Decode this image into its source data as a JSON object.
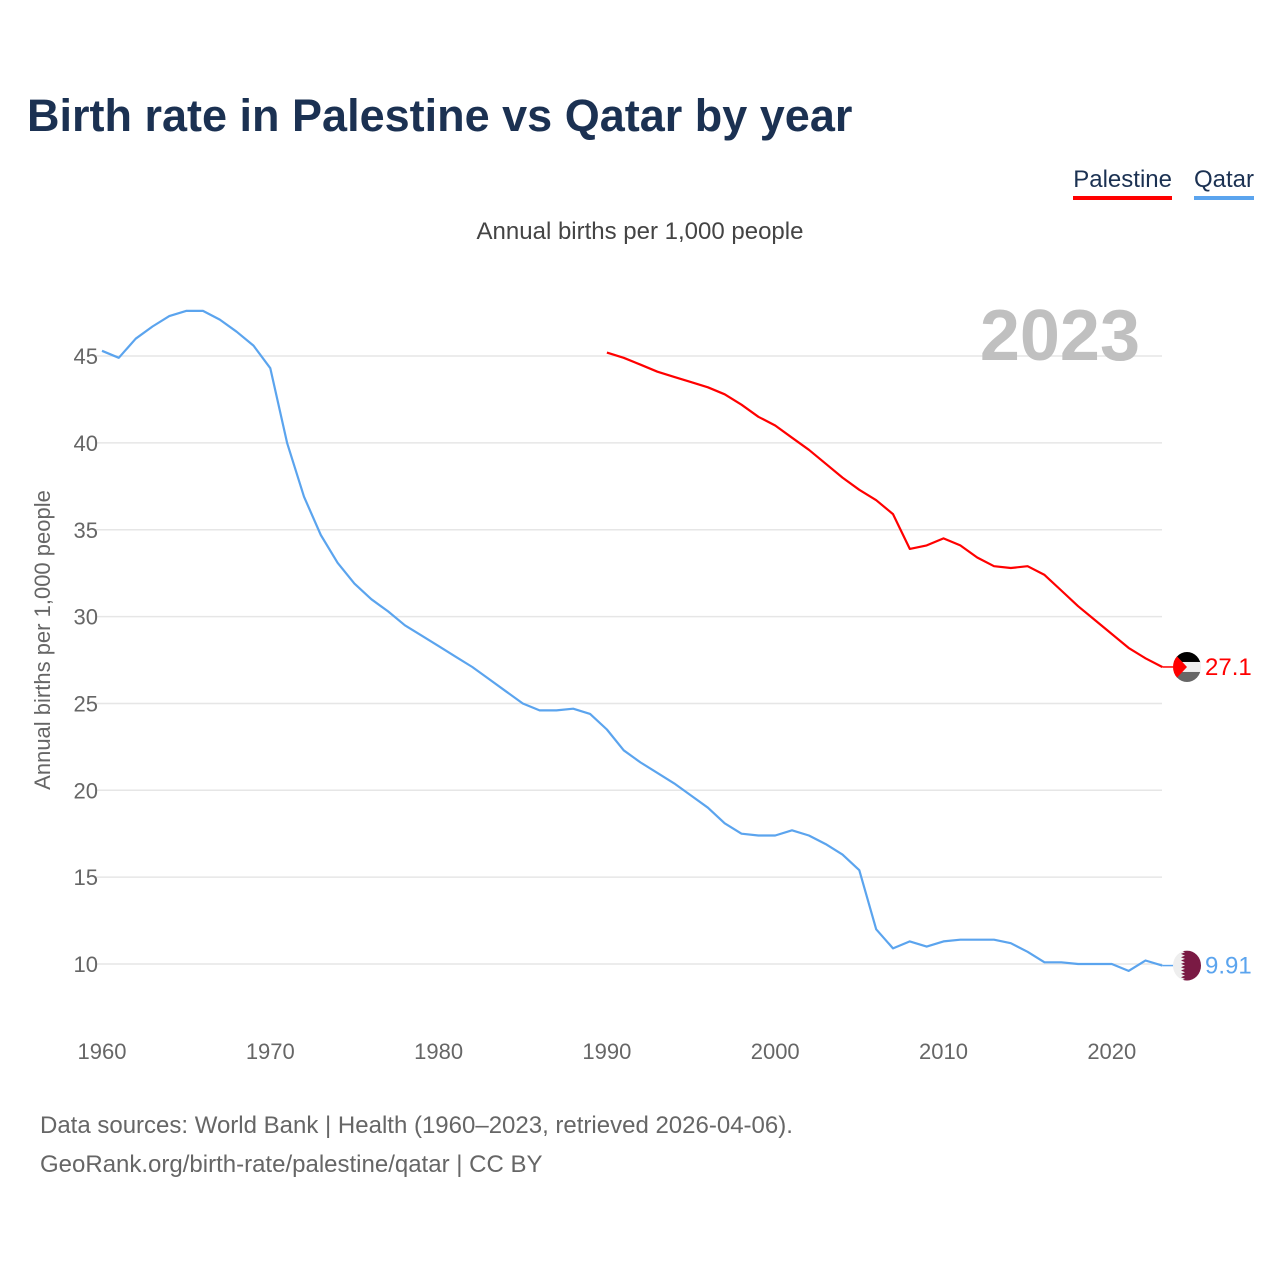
{
  "chart_data": {
    "type": "line",
    "title": "Birth rate in Palestine vs Qatar by year",
    "subtitle": "Annual births per 1,000 people",
    "ylabel": "Annual births per 1,000 people",
    "xlabel": "",
    "xlim": [
      1960,
      2023
    ],
    "ylim": [
      6.5,
      49
    ],
    "yticks": [
      10,
      15,
      20,
      25,
      30,
      35,
      40,
      45
    ],
    "xticks": [
      1960,
      1970,
      1980,
      1990,
      2000,
      2010,
      2020
    ],
    "grid": true,
    "legend_placement": "top-right",
    "year_label": "2023",
    "series": [
      {
        "name": "Palestine",
        "color": "#ff0000",
        "end_label": "27.1",
        "flag": "palestine-flag",
        "x": [
          1990,
          1991,
          1992,
          1993,
          1994,
          1995,
          1996,
          1997,
          1998,
          1999,
          2000,
          2001,
          2002,
          2003,
          2004,
          2005,
          2006,
          2007,
          2008,
          2009,
          2010,
          2011,
          2012,
          2013,
          2014,
          2015,
          2016,
          2017,
          2018,
          2019,
          2020,
          2021,
          2022,
          2023
        ],
        "values": [
          45.2,
          44.9,
          44.5,
          44.1,
          43.8,
          43.5,
          43.2,
          42.8,
          42.2,
          41.5,
          41.0,
          40.3,
          39.6,
          38.8,
          38.0,
          37.3,
          36.7,
          35.9,
          33.9,
          34.1,
          34.5,
          34.1,
          33.4,
          32.9,
          32.8,
          32.9,
          32.4,
          31.5,
          30.6,
          29.8,
          29.0,
          28.2,
          27.6,
          27.1
        ]
      },
      {
        "name": "Qatar",
        "color": "#5ba4ee",
        "end_label": "9.91",
        "flag": "qatar-flag",
        "x": [
          1960,
          1961,
          1962,
          1963,
          1964,
          1965,
          1966,
          1967,
          1968,
          1969,
          1970,
          1971,
          1972,
          1973,
          1974,
          1975,
          1976,
          1977,
          1978,
          1979,
          1980,
          1981,
          1982,
          1983,
          1984,
          1985,
          1986,
          1987,
          1988,
          1989,
          1990,
          1991,
          1992,
          1993,
          1994,
          1995,
          1996,
          1997,
          1998,
          1999,
          2000,
          2001,
          2002,
          2003,
          2004,
          2005,
          2006,
          2007,
          2008,
          2009,
          2010,
          2011,
          2012,
          2013,
          2014,
          2015,
          2016,
          2017,
          2018,
          2019,
          2020,
          2021,
          2022,
          2023
        ],
        "values": [
          45.3,
          44.9,
          46.0,
          46.7,
          47.3,
          47.6,
          47.6,
          47.1,
          46.4,
          45.6,
          44.3,
          40.0,
          36.9,
          34.7,
          33.1,
          31.9,
          31.0,
          30.3,
          29.5,
          28.9,
          28.3,
          27.7,
          27.1,
          26.4,
          25.7,
          25.0,
          24.6,
          24.6,
          24.7,
          24.4,
          23.5,
          22.3,
          21.6,
          21.0,
          20.4,
          19.7,
          19.0,
          18.1,
          17.5,
          17.4,
          17.4,
          17.7,
          17.4,
          16.9,
          16.3,
          15.4,
          12.0,
          10.9,
          11.3,
          11.0,
          11.3,
          11.4,
          11.4,
          11.4,
          11.2,
          10.7,
          10.1,
          10.1,
          10.0,
          10.0,
          10.0,
          9.6,
          10.2,
          9.91
        ]
      }
    ]
  },
  "footer": {
    "line1": "Data sources: World Bank | Health (1960–2023, retrieved 2026-04-06).",
    "line2": "GeoRank.org/birth-rate/palestine/qatar | CC BY"
  }
}
